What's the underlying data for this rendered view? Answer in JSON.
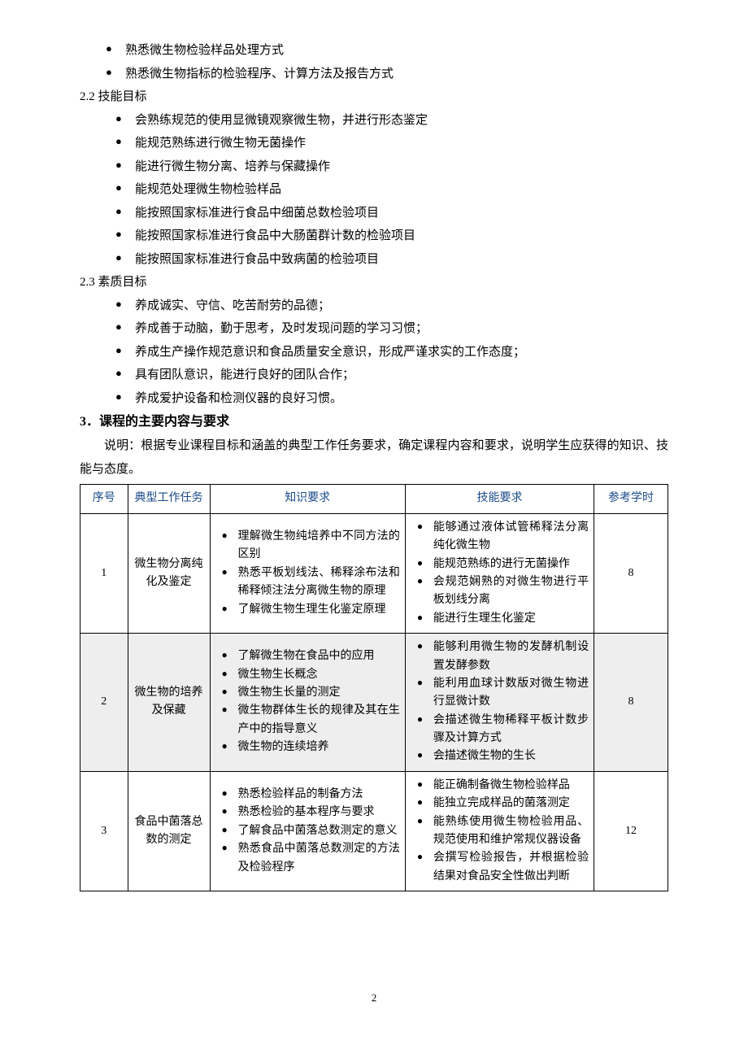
{
  "intro_bullets": [
    "熟悉微生物检验样品处理方式",
    "熟悉微生物指标的检验程序、计算方法及报告方式"
  ],
  "section22": {
    "heading": "2.2 技能目标",
    "bullets": [
      "会熟练规范的使用显微镜观察微生物，并进行形态鉴定",
      "能规范熟练进行微生物无菌操作",
      "能进行微生物分离、培养与保藏操作",
      "能规范处理微生物检验样品",
      "能按照国家标准进行食品中细菌总数检验项目",
      "能按照国家标准进行食品中大肠菌群计数的检验项目",
      "能按照国家标准进行食品中致病菌的检验项目"
    ]
  },
  "section23": {
    "heading": "2.3 素质目标",
    "bullets": [
      "养成诚实、守信、吃苦耐劳的品德；",
      "养成善于动脑，勤于思考，及时发现问题的学习习惯；",
      "养成生产操作规范意识和食品质量安全意识，形成严谨求实的工作态度；",
      "具有团队意识，能进行良好的团队合作；",
      "养成爱护设备和检测仪器的良好习惯。"
    ]
  },
  "section3": {
    "heading": "3．课程的主要内容与要求",
    "para": "说明：根据专业课程目标和涵盖的典型工作任务要求，确定课程内容和要求，说明学生应获得的知识、技能与态度。"
  },
  "table": {
    "col_widths": [
      "58px",
      "100px",
      "238px",
      "230px",
      "90px"
    ],
    "headers": [
      "序号",
      "典型工作任务",
      "知识要求",
      "技能要求",
      "参考学时"
    ],
    "rows": [
      {
        "idx": "1",
        "task": "微生物分离纯化及鉴定",
        "knowledge": [
          "理解微生物纯培养中不同方法的区别",
          "熟悉平板划线法、稀释涂布法和稀释倾注法分离微生物的原理",
          "了解微生物生理生化鉴定原理"
        ],
        "skill": [
          "能够通过液体试管稀释法分离纯化微生物",
          "能规范熟练的进行无菌操作",
          "会规范娴熟的对微生物进行平板划线分离",
          "能进行生理生化鉴定"
        ],
        "hours": "8",
        "shade": false
      },
      {
        "idx": "2",
        "task": "微生物的培养及保藏",
        "knowledge": [
          "了解微生物在食品中的应用",
          "微生物生长概念",
          "微生物生长量的测定",
          "微生物群体生长的规律及其在生产中的指导意义",
          "微生物的连续培养"
        ],
        "skill": [
          "能够利用微生物的发酵机制设置发酵参数",
          "能利用血球计数版对微生物进行显微计数",
          "会描述微生物稀释平板计数步骤及计算方式",
          "会描述微生物的生长"
        ],
        "hours": "8",
        "shade": true
      },
      {
        "idx": "3",
        "task": "食品中菌落总数的测定",
        "knowledge": [
          "熟悉检验样品的制备方法",
          "熟悉检验的基本程序与要求",
          "了解食品中菌落总数测定的意义",
          "熟悉食品中菌落总数测定的方法及检验程序"
        ],
        "skill": [
          "能正确制备微生物检验样品",
          "能独立完成样品的菌落测定",
          "能熟练使用微生物检验用品、规范使用和维护常规仪器设备",
          "会撰写检验报告，并根据检验结果对食品安全性做出判断"
        ],
        "hours": "12",
        "shade": false
      }
    ]
  },
  "page_number": "2"
}
